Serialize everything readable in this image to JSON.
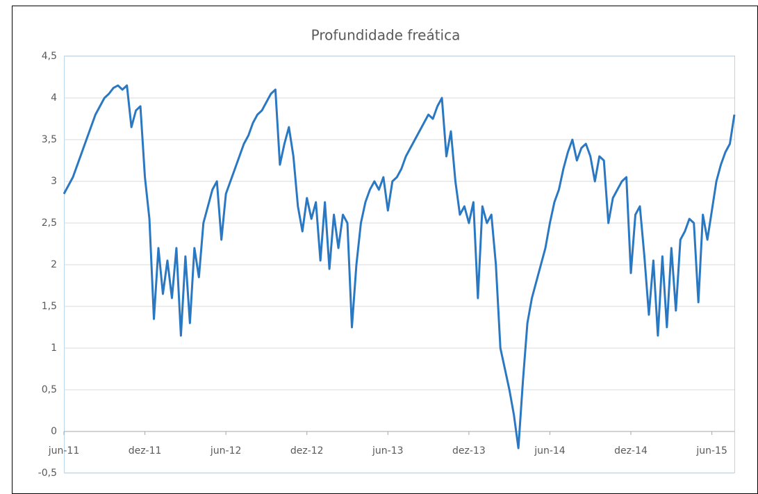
{
  "chart_data": {
    "type": "line",
    "title": "Profundidade freática",
    "categories": [
      "jun-11",
      null,
      null,
      null,
      null,
      null,
      null,
      null,
      null,
      null,
      null,
      null,
      null,
      null,
      null,
      null,
      null,
      null,
      "dez-11",
      null,
      null,
      null,
      null,
      null,
      null,
      null,
      null,
      null,
      null,
      null,
      null,
      null,
      null,
      null,
      null,
      null,
      "jun-12",
      null,
      null,
      null,
      null,
      null,
      null,
      null,
      null,
      null,
      null,
      null,
      null,
      null,
      null,
      null,
      null,
      null,
      "dez-12",
      null,
      null,
      null,
      null,
      null,
      null,
      null,
      null,
      null,
      null,
      null,
      null,
      null,
      null,
      null,
      null,
      null,
      "jun-13",
      null,
      null,
      null,
      null,
      null,
      null,
      null,
      null,
      null,
      null,
      null,
      null,
      null,
      null,
      null,
      null,
      null,
      "dez-13",
      null,
      null,
      null,
      null,
      null,
      null,
      null,
      null,
      null,
      null,
      null,
      null,
      null,
      null,
      null,
      null,
      null,
      "jun-14",
      null,
      null,
      null,
      null,
      null,
      null,
      null,
      null,
      null,
      null,
      null,
      null,
      null,
      null,
      null,
      null,
      null,
      "dez-14",
      null,
      null,
      null,
      null,
      null,
      null,
      null,
      null,
      null,
      null,
      null,
      null,
      null,
      null,
      null,
      null,
      null,
      "jun-15",
      null,
      null,
      null,
      null,
      null
    ],
    "values": [
      2.85,
      2.95,
      3.05,
      3.2,
      3.35,
      3.5,
      3.65,
      3.8,
      3.9,
      4.0,
      4.05,
      4.12,
      4.15,
      4.1,
      4.15,
      3.65,
      3.85,
      3.9,
      3.05,
      2.55,
      1.35,
      2.2,
      1.65,
      2.05,
      1.6,
      2.2,
      1.15,
      2.1,
      1.3,
      2.2,
      1.85,
      2.5,
      2.7,
      2.9,
      3.0,
      2.3,
      2.85,
      3.0,
      3.15,
      3.3,
      3.45,
      3.55,
      3.7,
      3.8,
      3.85,
      3.95,
      4.05,
      4.1,
      3.2,
      3.45,
      3.65,
      3.3,
      2.7,
      2.4,
      2.8,
      2.55,
      2.75,
      2.05,
      2.75,
      1.95,
      2.6,
      2.2,
      2.6,
      2.5,
      1.25,
      2.0,
      2.5,
      2.75,
      2.9,
      3.0,
      2.9,
      3.05,
      2.65,
      3.0,
      3.05,
      3.15,
      3.3,
      3.4,
      3.5,
      3.6,
      3.7,
      3.8,
      3.75,
      3.9,
      4.0,
      3.3,
      3.6,
      3.0,
      2.6,
      2.7,
      2.5,
      2.75,
      1.6,
      2.7,
      2.5,
      2.6,
      2.0,
      1.0,
      0.75,
      0.5,
      0.2,
      -0.2,
      0.6,
      1.3,
      1.6,
      1.8,
      2.0,
      2.2,
      2.5,
      2.75,
      2.9,
      3.15,
      3.35,
      3.5,
      3.25,
      3.4,
      3.45,
      3.3,
      3.0,
      3.3,
      3.25,
      2.5,
      2.8,
      2.9,
      3.0,
      3.05,
      1.9,
      2.6,
      2.7,
      2.1,
      1.4,
      2.05,
      1.15,
      2.1,
      1.25,
      2.2,
      1.45,
      2.3,
      2.4,
      2.55,
      2.5,
      1.55,
      2.6,
      2.3,
      2.65,
      3.0,
      3.2,
      3.35,
      3.45,
      3.8
    ],
    "color": "#2a78c2",
    "ylim": [
      -0.5,
      4.5
    ],
    "yticks": [
      {
        "value": -0.5,
        "label": "-0,5"
      },
      0,
      {
        "value": 0.5,
        "label": "0,5"
      },
      1,
      {
        "value": 1.5,
        "label": "1,5"
      },
      2,
      {
        "value": 2.5,
        "label": "2,5"
      },
      3,
      {
        "value": 3.5,
        "label": "3,5"
      },
      4,
      {
        "value": 4.5,
        "label": "4,5"
      }
    ],
    "grid": true
  }
}
